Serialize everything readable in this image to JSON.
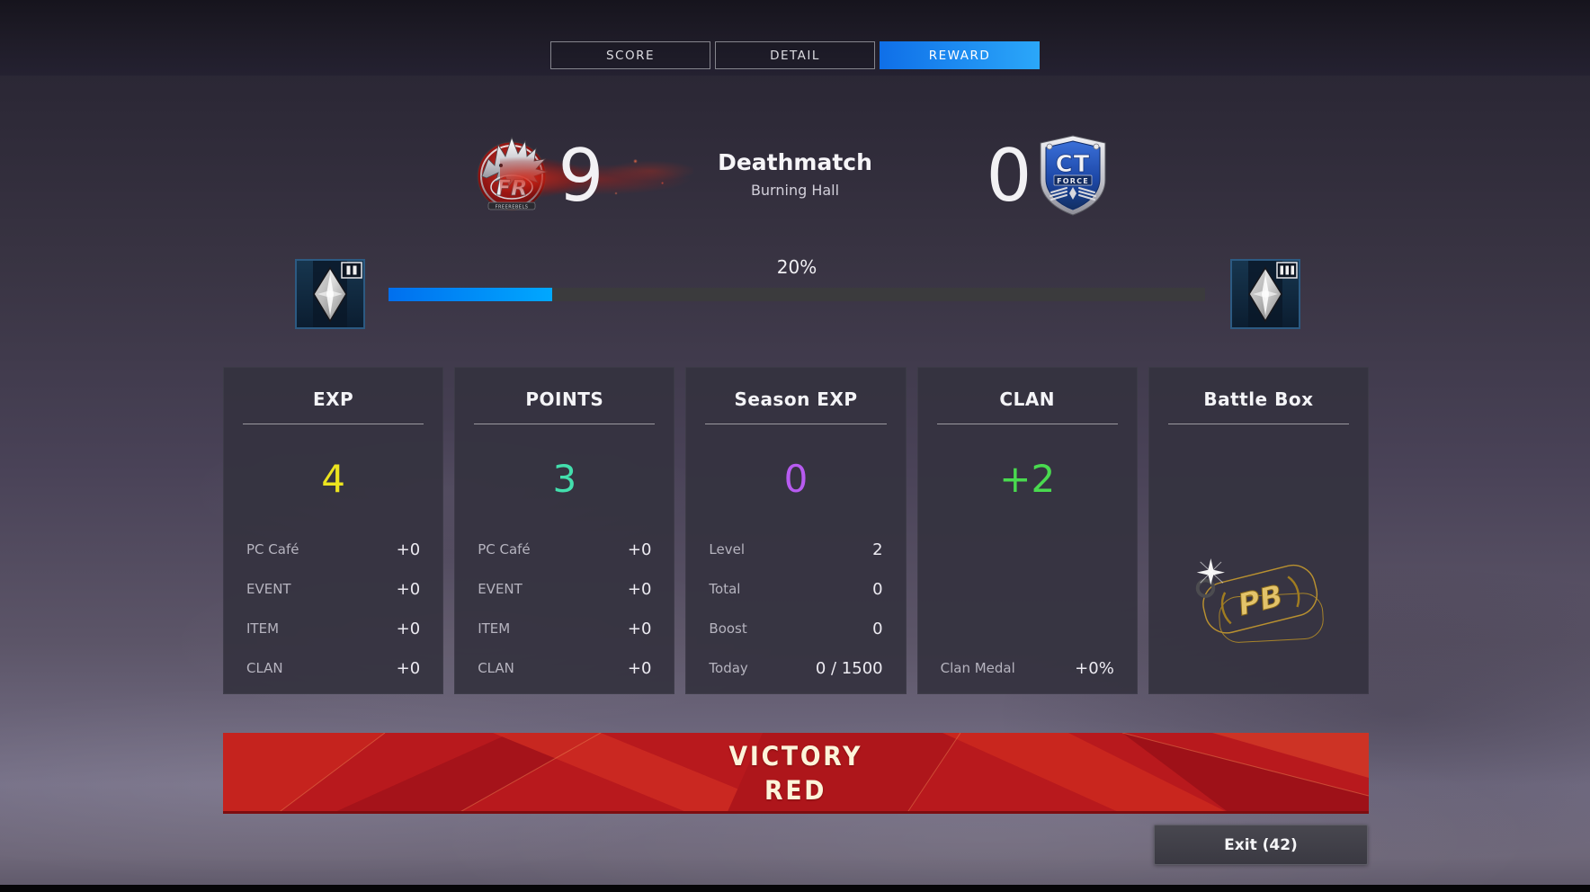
{
  "tabs": {
    "score": "SCORE",
    "detail": "DETAIL",
    "reward": "REWARD"
  },
  "match": {
    "mode": "Deathmatch",
    "map": "Burning Hall",
    "red_team": {
      "abbr": "FR",
      "name": "FREEREBELS",
      "score": "9"
    },
    "blue_team": {
      "abbr": "CT",
      "name": "FORCE",
      "score": "0"
    }
  },
  "progress": {
    "label": "20%",
    "percent": 20,
    "left_rank": "II",
    "right_rank": "III"
  },
  "cards": [
    {
      "id": "exp",
      "title": "EXP",
      "value": "4",
      "value_color": "#ece41f",
      "rows": [
        {
          "label": "PC Café",
          "value": "+0"
        },
        {
          "label": "EVENT",
          "value": "+0"
        },
        {
          "label": "ITEM",
          "value": "+0"
        },
        {
          "label": "CLAN",
          "value": "+0"
        }
      ]
    },
    {
      "id": "points",
      "title": "POINTS",
      "value": "3",
      "value_color": "#43dfad",
      "rows": [
        {
          "label": "PC Café",
          "value": "+0"
        },
        {
          "label": "EVENT",
          "value": "+0"
        },
        {
          "label": "ITEM",
          "value": "+0"
        },
        {
          "label": "CLAN",
          "value": "+0"
        }
      ]
    },
    {
      "id": "season-exp",
      "title": "Season EXP",
      "value": "0",
      "value_color": "#b75bf0",
      "rows": [
        {
          "label": "Level",
          "value": "2"
        },
        {
          "label": "Total",
          "value": "0"
        },
        {
          "label": "Boost",
          "value": "0"
        },
        {
          "label": "Today",
          "value": "0 / 1500"
        }
      ]
    },
    {
      "id": "clan",
      "title": "CLAN",
      "value": "+2",
      "value_color": "#49da4f",
      "rows": [
        {
          "label": "Clan Medal",
          "value": "+0%"
        }
      ]
    },
    {
      "id": "battle-box",
      "title": "Battle Box",
      "value": "",
      "item": "gold-dog-tag",
      "item_label": "PB",
      "rows": []
    }
  ],
  "result": {
    "title": "VICTORY",
    "team": "RED"
  },
  "exit_label": "Exit (42)",
  "colors": {
    "accent_blue": "#1b8cf2",
    "progress_fill_start": "#006fee",
    "progress_fill_end": "#00a8ff",
    "victory_red": "#b8191d",
    "exp_yellow": "#ece41f",
    "points_mint": "#43dfad",
    "season_purple": "#b75bf0",
    "clan_green": "#49da4f"
  }
}
